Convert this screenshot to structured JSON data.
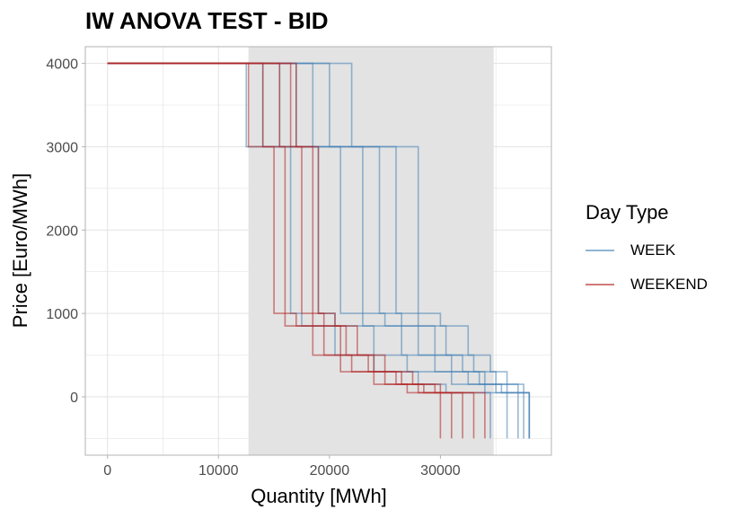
{
  "chart_data": {
    "type": "line",
    "title": "IW ANOVA TEST - BID",
    "xlabel": "Quantity [MWh]",
    "ylabel": "Price [Euro/MWh]",
    "xlim": [
      -2000,
      40000
    ],
    "ylim": [
      -700,
      4200
    ],
    "x_ticks": [
      0,
      10000,
      20000,
      30000
    ],
    "x_tick_labels": [
      "0",
      "10000",
      "20000",
      "30000"
    ],
    "y_ticks": [
      0,
      1000,
      2000,
      3000,
      4000
    ],
    "y_tick_labels": [
      "0",
      "1000",
      "2000",
      "3000",
      "4000"
    ],
    "grid": true,
    "legend": {
      "title": "Day Type",
      "position": "right",
      "entries": [
        {
          "label": "WEEK",
          "color": "#4682b4"
        },
        {
          "label": "WEEKEND",
          "color": "#b22222"
        }
      ]
    },
    "shaded_region": {
      "x_start": 12700,
      "x_end": 34800,
      "color": "#e3e3e3"
    },
    "series": [
      {
        "group": "WEEK",
        "color": "#4682b4",
        "x": [
          0,
          12500,
          12500,
          16500,
          16500,
          17500,
          17500,
          20500,
          20500,
          24000,
          24000,
          28000,
          28000,
          30500,
          30500,
          34500,
          34500
        ],
        "y": [
          4000,
          4000,
          3000,
          3000,
          1000,
          1000,
          850,
          850,
          500,
          500,
          300,
          300,
          150,
          150,
          50,
          50,
          -500
        ]
      },
      {
        "group": "WEEK",
        "color": "#4682b4",
        "x": [
          0,
          14000,
          14000,
          19000,
          19000,
          20500,
          20500,
          24000,
          24000,
          27000,
          27000,
          31000,
          31000,
          34000,
          34000,
          36000,
          36000
        ],
        "y": [
          4000,
          4000,
          3000,
          3000,
          1000,
          1000,
          850,
          850,
          500,
          500,
          300,
          300,
          150,
          150,
          50,
          50,
          -500
        ]
      },
      {
        "group": "WEEK",
        "color": "#4682b4",
        "x": [
          0,
          15500,
          15500,
          21000,
          21000,
          23000,
          23000,
          26500,
          26500,
          29500,
          29500,
          32500,
          32500,
          35000,
          35000,
          37000,
          37000
        ],
        "y": [
          4000,
          4000,
          3000,
          3000,
          1000,
          1000,
          850,
          850,
          500,
          500,
          300,
          300,
          150,
          150,
          50,
          50,
          -500
        ]
      },
      {
        "group": "WEEK",
        "color": "#4682b4",
        "x": [
          0,
          17000,
          17000,
          23000,
          23000,
          25000,
          25000,
          28000,
          28000,
          31000,
          31000,
          33500,
          33500,
          35500,
          35500,
          37500,
          37500
        ],
        "y": [
          4000,
          4000,
          3000,
          3000,
          1000,
          1000,
          850,
          850,
          500,
          500,
          300,
          300,
          150,
          150,
          50,
          50,
          -500
        ]
      },
      {
        "group": "WEEK",
        "color": "#4682b4",
        "x": [
          0,
          18500,
          18500,
          24500,
          24500,
          26500,
          26500,
          29500,
          29500,
          32000,
          32000,
          34000,
          34000,
          36000,
          36000,
          38000,
          38000
        ],
        "y": [
          4000,
          4000,
          3000,
          3000,
          1000,
          1000,
          850,
          850,
          500,
          500,
          300,
          300,
          150,
          150,
          50,
          50,
          -500
        ]
      },
      {
        "group": "WEEK",
        "color": "#4682b4",
        "x": [
          0,
          20000,
          20000,
          26000,
          26000,
          28000,
          28000,
          30500,
          30500,
          33000,
          33000,
          35000,
          35000,
          37000,
          37000,
          38000,
          38000
        ],
        "y": [
          4000,
          4000,
          3000,
          3000,
          1000,
          1000,
          850,
          850,
          500,
          500,
          300,
          300,
          150,
          150,
          50,
          50,
          -500
        ]
      },
      {
        "group": "WEEK",
        "color": "#4682b4",
        "x": [
          0,
          22000,
          22000,
          28000,
          28000,
          30000,
          30000,
          32500,
          32500,
          34500,
          34500,
          36000,
          36000,
          37500,
          37500,
          38000,
          38000
        ],
        "y": [
          4000,
          4000,
          3000,
          3000,
          1000,
          1000,
          850,
          850,
          500,
          500,
          300,
          300,
          150,
          150,
          50,
          50,
          -500
        ]
      },
      {
        "group": "WEEKEND",
        "color": "#b22222",
        "x": [
          0,
          12700,
          12700,
          15000,
          15000,
          16000,
          16000,
          18500,
          18500,
          21000,
          21000,
          24000,
          24000,
          27000,
          27000,
          30000,
          30000
        ],
        "y": [
          4000,
          4000,
          3000,
          3000,
          1000,
          1000,
          850,
          850,
          500,
          500,
          300,
          300,
          150,
          150,
          50,
          50,
          -500
        ]
      },
      {
        "group": "WEEKEND",
        "color": "#b22222",
        "x": [
          0,
          14000,
          14000,
          16000,
          16000,
          17000,
          17000,
          19500,
          19500,
          22000,
          22000,
          25000,
          25000,
          28000,
          28000,
          31000,
          31000
        ],
        "y": [
          4000,
          4000,
          3000,
          3000,
          1000,
          1000,
          850,
          850,
          500,
          500,
          300,
          300,
          150,
          150,
          50,
          50,
          -500
        ]
      },
      {
        "group": "WEEKEND",
        "color": "#b22222",
        "x": [
          0,
          15500,
          15500,
          17500,
          17500,
          18500,
          18500,
          21000,
          21000,
          23500,
          23500,
          26500,
          26500,
          29500,
          29500,
          32000,
          32000
        ],
        "y": [
          4000,
          4000,
          3000,
          3000,
          1000,
          1000,
          850,
          850,
          500,
          500,
          300,
          300,
          150,
          150,
          50,
          50,
          -500
        ]
      },
      {
        "group": "WEEKEND",
        "color": "#b22222",
        "x": [
          0,
          17000,
          17000,
          19000,
          19000,
          20500,
          20500,
          22500,
          22500,
          25000,
          25000,
          27500,
          27500,
          30000,
          30000,
          33000,
          33000
        ],
        "y": [
          4000,
          4000,
          3000,
          3000,
          1000,
          1000,
          850,
          850,
          500,
          500,
          300,
          300,
          150,
          150,
          50,
          50,
          -500
        ]
      },
      {
        "group": "WEEKEND",
        "color": "#b22222",
        "x": [
          0,
          16500,
          16500,
          18500,
          18500,
          19500,
          19500,
          21500,
          21500,
          24000,
          24000,
          26000,
          26000,
          28500,
          28500,
          34000,
          34000
        ],
        "y": [
          4000,
          4000,
          3000,
          3000,
          1000,
          1000,
          850,
          850,
          500,
          500,
          300,
          300,
          150,
          150,
          50,
          50,
          -500
        ]
      }
    ]
  }
}
